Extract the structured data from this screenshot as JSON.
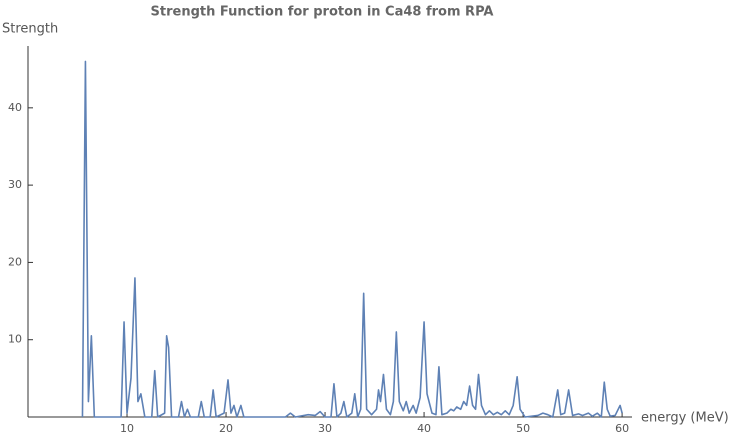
{
  "chart_data": {
    "type": "line",
    "title": "Strength Function for proton in Ca48 from RPA",
    "x_label": "energy (MeV)",
    "y_label": "Strength",
    "x": [
      5.5,
      5.8,
      6.1,
      6.4,
      6.7,
      9.4,
      9.7,
      10,
      10.4,
      10.8,
      11.1,
      11.4,
      11.8,
      12.5,
      12.8,
      13.1,
      13.8,
      14,
      14.2,
      14.5,
      15.2,
      15.5,
      15.8,
      16.1,
      16.4,
      17.2,
      17.5,
      17.8,
      18.4,
      18.7,
      19,
      19.8,
      20.2,
      20.5,
      20.8,
      21.1,
      21.5,
      21.8,
      22.2,
      26,
      26.5,
      27,
      28.3,
      29,
      29.5,
      30,
      30.6,
      30.9,
      31.2,
      31.6,
      31.9,
      32.2,
      32.7,
      33,
      33.3,
      33.6,
      33.9,
      34.2,
      34.7,
      35.2,
      35.4,
      35.6,
      35.9,
      36.2,
      36.6,
      36.9,
      37.2,
      37.5,
      37.9,
      38.2,
      38.5,
      38.9,
      39.2,
      39.6,
      40,
      40.3,
      40.8,
      41.2,
      41.5,
      41.8,
      42.3,
      42.7,
      43,
      43.3,
      43.7,
      44,
      44.3,
      44.6,
      44.9,
      45.2,
      45.5,
      45.8,
      46.2,
      46.6,
      47,
      47.4,
      47.8,
      48.2,
      48.6,
      49,
      49.4,
      49.7,
      50.2,
      51.5,
      52,
      52.5,
      53,
      53.5,
      53.8,
      54.2,
      54.6,
      55,
      55.6,
      56,
      56.6,
      57,
      57.5,
      57.9,
      58.2,
      58.5,
      58.8,
      59.3,
      59.8,
      60
    ],
    "series": [
      {
        "color": "#5e81b5",
        "values": [
          0,
          46,
          2,
          10.5,
          0,
          0,
          12.3,
          0.5,
          5,
          18,
          2,
          3,
          0,
          0,
          6,
          0,
          0.5,
          10.5,
          9,
          0,
          0,
          2,
          0,
          1,
          0,
          0,
          2,
          0,
          0,
          3.5,
          0,
          0.5,
          4.8,
          0.5,
          1.5,
          0,
          1.5,
          0,
          0,
          0,
          0.5,
          0,
          0.3,
          0.2,
          0.7,
          0,
          0,
          4.3,
          0,
          0.5,
          2,
          0,
          0.5,
          3,
          0,
          1,
          16,
          1,
          0.3,
          1,
          3.5,
          2,
          5.5,
          1,
          0.3,
          2,
          11,
          2,
          0.8,
          2,
          0.5,
          1.5,
          0.5,
          2.5,
          12.3,
          3,
          0.5,
          0.3,
          6.5,
          0.3,
          0.5,
          1,
          0.8,
          1.3,
          1,
          2,
          1.5,
          4,
          1.5,
          1,
          5.5,
          1.5,
          0.3,
          0.8,
          0.3,
          0.6,
          0.3,
          0.8,
          0.3,
          1.5,
          5.2,
          1,
          0,
          0.2,
          0.5,
          0.3,
          0,
          3.5,
          0.3,
          0.5,
          3.5,
          0.2,
          0.4,
          0.2,
          0.5,
          0.1,
          0.5,
          0,
          4.5,
          1,
          0.1,
          0.2,
          1.5,
          0.5
        ]
      }
    ],
    "xlim": [
      0,
      61
    ],
    "ylim": [
      0,
      48
    ],
    "xticks": [
      10,
      20,
      30,
      40,
      50,
      60
    ],
    "yticks": [
      10,
      20,
      30,
      40
    ]
  }
}
